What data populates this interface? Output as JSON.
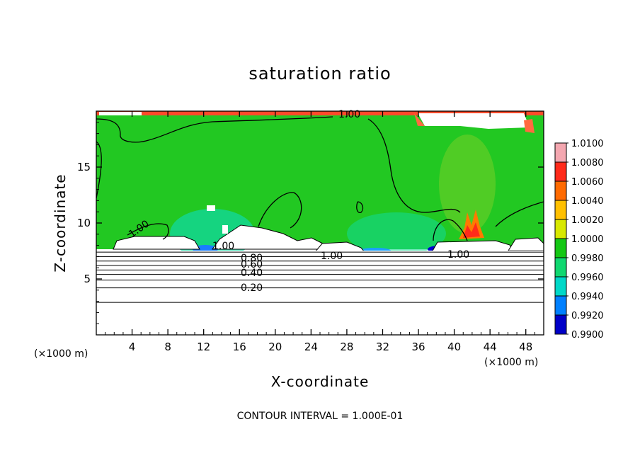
{
  "chart_data": {
    "type": "heatmap",
    "title": "saturation ratio",
    "xlabel": "X-coordinate",
    "ylabel": "Z-coordinate",
    "x_unit_label": "(×1000 m)",
    "x_unit_label_right": "(×1000 m)",
    "xlim": [
      0,
      50
    ],
    "ylim": [
      0,
      20
    ],
    "x_ticks": [
      "4",
      "8",
      "12",
      "16",
      "20",
      "24",
      "28",
      "32",
      "36",
      "40",
      "44",
      "48"
    ],
    "x_tick_values": [
      4,
      8,
      12,
      16,
      20,
      24,
      28,
      32,
      36,
      40,
      44,
      48
    ],
    "y_ticks": [
      "5",
      "10",
      "15"
    ],
    "y_tick_values": [
      5,
      10,
      15
    ],
    "colorbar": {
      "labels": [
        "1.0100",
        "1.0080",
        "1.0060",
        "1.0040",
        "1.0020",
        "1.0000",
        "0.9980",
        "0.9960",
        "0.9940",
        "0.9920",
        "0.9900"
      ],
      "colors": [
        "#f4a7b0",
        "#ff2a1a",
        "#ff6a00",
        "#ffc000",
        "#d8e800",
        "#14c814",
        "#10d870",
        "#00d8c8",
        "#0080ff",
        "#0000c8",
        "#6a10a0"
      ]
    },
    "contour_interval_text": "CONTOUR INTERVAL = 1.000E-01",
    "contour_labels": [
      "1.00",
      "1.00",
      "1.00",
      "1.00",
      "1.00",
      "0.80",
      "0.60",
      "0.40",
      "0.20"
    ],
    "layer_contour_levels_km": [
      2.9,
      4.2,
      4.9,
      5.4,
      5.8,
      6.2,
      6.6,
      7.0,
      7.4
    ]
  }
}
